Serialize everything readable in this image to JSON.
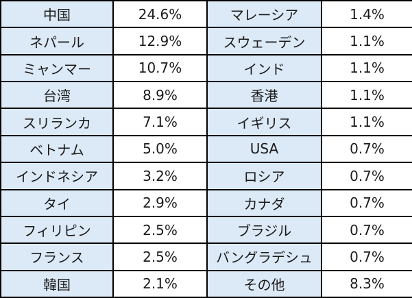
{
  "table": {
    "rows": [
      {
        "left_name": "中国",
        "left_pct": "24.6%",
        "right_name": "マレーシア",
        "right_pct": "1.4%"
      },
      {
        "left_name": "ネパール",
        "left_pct": "12.9%",
        "right_name": "スウェーデン",
        "right_pct": "1.1%"
      },
      {
        "left_name": "ミャンマー",
        "left_pct": "10.7%",
        "right_name": "インド",
        "right_pct": "1.1%"
      },
      {
        "left_name": "台湾",
        "left_pct": "8.9%",
        "right_name": "香港",
        "right_pct": "1.1%"
      },
      {
        "left_name": "スリランカ",
        "left_pct": "7.1%",
        "right_name": "イギリス",
        "right_pct": "1.1%"
      },
      {
        "left_name": "ベトナム",
        "left_pct": "5.0%",
        "right_name": "USA",
        "right_pct": "0.7%"
      },
      {
        "left_name": "インドネシア",
        "left_pct": "3.2%",
        "right_name": "ロシア",
        "right_pct": "0.7%"
      },
      {
        "left_name": "タイ",
        "left_pct": "2.9%",
        "right_name": "カナダ",
        "right_pct": "0.7%"
      },
      {
        "left_name": "フィリピン",
        "left_pct": "2.5%",
        "right_name": "ブラジル",
        "right_pct": "0.7%"
      },
      {
        "left_name": "フランス",
        "left_pct": "2.5%",
        "right_name": "バングラデシュ",
        "right_pct": "0.7%"
      },
      {
        "left_name": "韓国",
        "left_pct": "2.1%",
        "right_name": "その他",
        "right_pct": "8.3%"
      }
    ],
    "colors": {
      "name_cell_bg": "#dce9f6",
      "value_cell_bg": "#ffffff",
      "border": "#000000"
    }
  }
}
